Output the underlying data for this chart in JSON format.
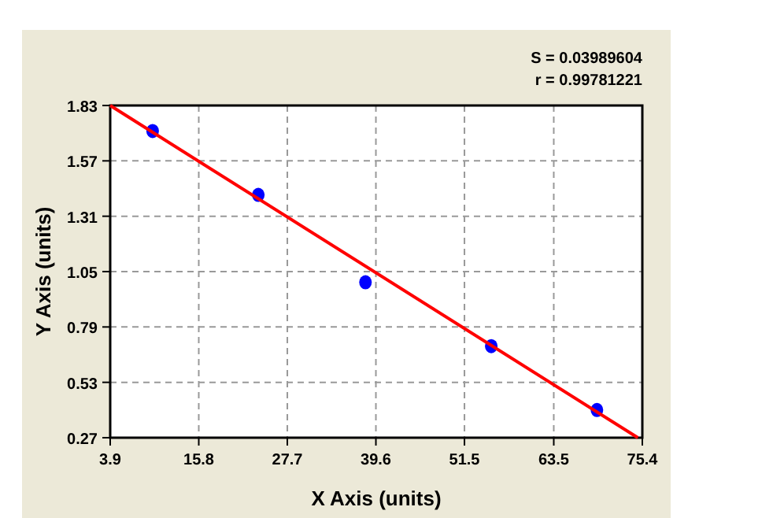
{
  "chart_data": {
    "type": "scatter",
    "xlabel": "X Axis (units)",
    "ylabel": "Y Axis (units)",
    "annotations": [
      "S = 0.03989604",
      "r = 0.99781221"
    ],
    "xlim": [
      3.9,
      75.4
    ],
    "xticks": [
      3.9,
      15.8,
      27.7,
      39.6,
      51.5,
      63.5,
      75.4
    ],
    "ylim": [
      0.27,
      1.83
    ],
    "yticks": [
      0.27,
      0.53,
      0.79,
      1.05,
      1.31,
      1.57,
      1.83
    ],
    "grid": true,
    "marker": "circle",
    "series": [
      {
        "type": "scatter",
        "color": "#0000ff",
        "x": [
          9.6,
          23.8,
          38.2,
          55.1,
          69.3
        ],
        "values": [
          1.71,
          1.41,
          1.0,
          0.7,
          0.4
        ]
      },
      {
        "type": "line",
        "color": "#ff0000",
        "x": [
          3.9,
          74.8
        ],
        "values": [
          1.83,
          0.27
        ],
        "marker": "none",
        "line_style": "solid"
      }
    ]
  }
}
